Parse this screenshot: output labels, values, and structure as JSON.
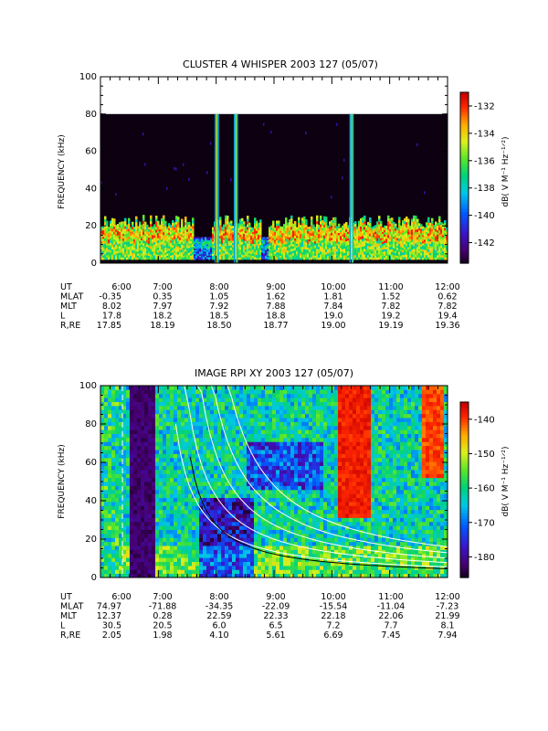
{
  "chart_data": [
    {
      "type": "heatmap",
      "title": "CLUSTER 4 WHISPER 2003 127 (05/07)",
      "ylabel": "FREQUENCY (kHz)",
      "colorbar_label": "dB( V M⁻¹ Hz⁻¹ᐟ²)",
      "x_ticks": [
        "6:00",
        "7:00",
        "8:00",
        "9:00",
        "10:00",
        "11:00",
        "12:00"
      ],
      "ylim": [
        0,
        100
      ],
      "y_ticks": [
        "0",
        "20",
        "40",
        "60",
        "80",
        "100"
      ],
      "data_ceiling_khz": 80,
      "colorbar_range": [
        -143.5,
        -131
      ],
      "colorbar_ticks": [
        "-132",
        "-134",
        "-136",
        "-138",
        "-140",
        "-142"
      ],
      "colorbar_values": [
        -132,
        -134,
        -136,
        -138,
        -140,
        -142
      ],
      "emission_band_khz": [
        5,
        25
      ],
      "bursts": [
        {
          "time": "8:00",
          "freq_range": [
            0,
            80
          ]
        },
        {
          "time": "8:20",
          "freq_range": [
            0,
            80
          ]
        },
        {
          "time": "10:20",
          "freq_range": [
            0,
            80
          ]
        }
      ],
      "ephemeris": {
        "labels": [
          "UT",
          "MLAT",
          "MLT",
          "L",
          "R,RE"
        ],
        "columns": [
          [
            "6:00",
            "-0.35",
            "8.02",
            "17.8",
            "17.85"
          ],
          [
            "7:00",
            "0.35",
            "7.97",
            "18.2",
            "18.19"
          ],
          [
            "8:00",
            "1.05",
            "7.92",
            "18.5",
            "18.50"
          ],
          [
            "9:00",
            "1.62",
            "7.88",
            "18.8",
            "18.77"
          ],
          [
            "10:00",
            "1.81",
            "7.84",
            "19.0",
            "19.00"
          ],
          [
            "11:00",
            "1.52",
            "7.82",
            "19.2",
            "19.19"
          ],
          [
            "12:00",
            "0.62",
            "7.82",
            "19.4",
            "19.36"
          ]
        ]
      }
    },
    {
      "type": "heatmap",
      "title": "IMAGE RPI XY 2003 127 (05/07)",
      "ylabel": "FREQUENCY (kHz)",
      "colorbar_label": "dB( V M⁻¹ Hz⁻¹ᐟ²)",
      "x_ticks": [
        "6:00",
        "7:00",
        "8:00",
        "9:00",
        "10:00",
        "11:00",
        "12:00"
      ],
      "ylim": [
        0,
        100
      ],
      "y_ticks": [
        "0",
        "20",
        "40",
        "60",
        "80",
        "100"
      ],
      "colorbar_range": [
        -186,
        -135
      ],
      "colorbar_ticks": [
        "-140",
        "-150",
        "-160",
        "-170",
        "-180"
      ],
      "colorbar_values": [
        -140,
        -150,
        -160,
        -170,
        -180
      ],
      "strong_band": {
        "time_range": [
          "10:05",
          "10:40"
        ],
        "freq_range": [
          30,
          100
        ]
      },
      "ephemeris": {
        "labels": [
          "UT",
          "MLAT",
          "MLT",
          "L",
          "R,RE"
        ],
        "columns": [
          [
            "6:00",
            "74.97",
            "12.37",
            "30.5",
            "2.05"
          ],
          [
            "7:00",
            "-71.88",
            "0.28",
            "20.5",
            "1.98"
          ],
          [
            "8:00",
            "-34.35",
            "22.59",
            "6.0",
            "4.10"
          ],
          [
            "9:00",
            "-22.09",
            "22.33",
            "6.5",
            "5.61"
          ],
          [
            "10:00",
            "-15.54",
            "22.18",
            "7.2",
            "6.69"
          ],
          [
            "11:00",
            "-11.04",
            "22.06",
            "7.7",
            "7.45"
          ],
          [
            "12:00",
            "-7.23",
            "21.99",
            "8.1",
            "7.94"
          ]
        ]
      }
    }
  ]
}
